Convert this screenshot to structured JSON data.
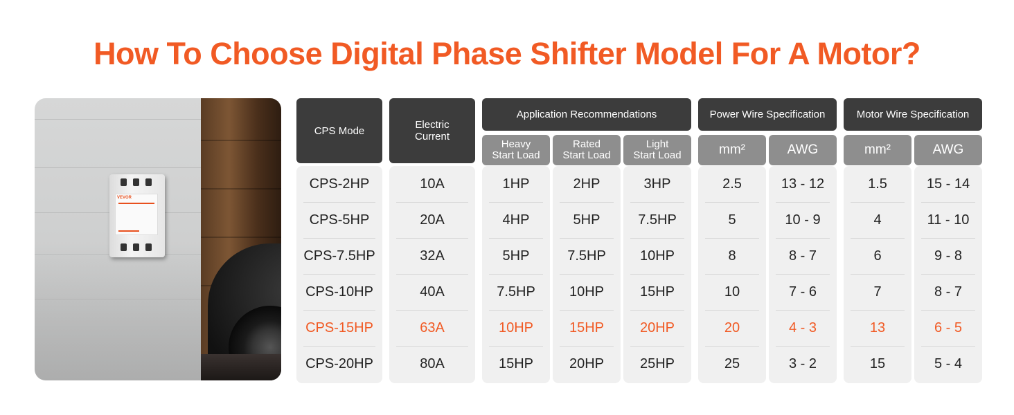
{
  "title": "How To Choose Digital Phase Shifter Model For A Motor?",
  "colors": {
    "accent": "#f15a24",
    "header": "#3c3c3c",
    "subheader": "#8e8e8e",
    "cell_bg": "#f0f0f0"
  },
  "device": {
    "brand": "VEVOR"
  },
  "headers": {
    "cps_mode": "CPS Mode",
    "electric_current": "Electric\nCurrent",
    "application": "Application Recommendations",
    "power_wire": "Power Wire Specification",
    "motor_wire": "Motor Wire Specification",
    "heavy": "Heavy\nStart Load",
    "rated": "Rated\nStart Load",
    "light": "Light\nStart Load",
    "mm2_power": "mm²",
    "awg_power": "AWG",
    "mm2_motor": "mm²",
    "awg_motor": "AWG"
  },
  "highlight_row": 4,
  "rows": [
    [
      "CPS-2HP",
      "10A",
      "1HP",
      "2HP",
      "3HP",
      "2.5",
      "13 - 12",
      "1.5",
      "15 - 14"
    ],
    [
      "CPS-5HP",
      "20A",
      "4HP",
      "5HP",
      "7.5HP",
      "5",
      "10 - 9",
      "4",
      "11 - 10"
    ],
    [
      "CPS-7.5HP",
      "32A",
      "5HP",
      "7.5HP",
      "10HP",
      "8",
      "8 - 7",
      "6",
      "9 - 8"
    ],
    [
      "CPS-10HP",
      "40A",
      "7.5HP",
      "10HP",
      "15HP",
      "10",
      "7 - 6",
      "7",
      "8 - 7"
    ],
    [
      "CPS-15HP",
      "63A",
      "10HP",
      "15HP",
      "20HP",
      "20",
      "4 - 3",
      "13",
      "6 - 5"
    ],
    [
      "CPS-20HP",
      "80A",
      "15HP",
      "20HP",
      "25HP",
      "25",
      "3 - 2",
      "15",
      "5 - 4"
    ]
  ]
}
